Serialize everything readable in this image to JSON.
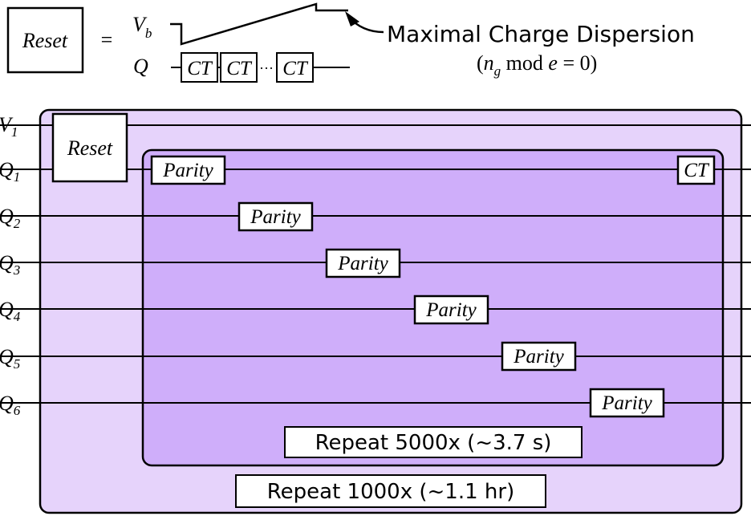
{
  "legend": {
    "reset_box_label": "Reset",
    "equals": "=",
    "vb_symbol": "V",
    "vb_subscript": "b",
    "q_symbol": "Q",
    "ct_label": "CT",
    "dots": "···",
    "annotation_title": "Maximal Charge Dispersion",
    "annotation_cond_open": "(",
    "annotation_cond_ng": "n",
    "annotation_cond_ng_sub": "g",
    "annotation_cond_mid": " mod ",
    "annotation_cond_e": "e",
    "annotation_cond_end": " = 0)"
  },
  "circuit": {
    "wires": [
      {
        "symbol": "V",
        "sub": "1"
      },
      {
        "symbol": "Q",
        "sub": "1"
      },
      {
        "symbol": "Q",
        "sub": "2"
      },
      {
        "symbol": "Q",
        "sub": "3"
      },
      {
        "symbol": "Q",
        "sub": "4"
      },
      {
        "symbol": "Q",
        "sub": "5"
      },
      {
        "symbol": "Q",
        "sub": "6"
      }
    ],
    "reset_gate_label": "Reset",
    "parity_label": "Parity",
    "ct_gate_label": "CT",
    "inner_repeat_label": "Repeat 5000x (~3.7 s)",
    "outer_repeat_label": "Repeat 1000x (~1.1 hr)"
  },
  "colors": {
    "outer_fill": "#e6d3fb",
    "inner_fill": "#cfaefa",
    "stroke": "#000000",
    "box_fill": "#ffffff"
  }
}
